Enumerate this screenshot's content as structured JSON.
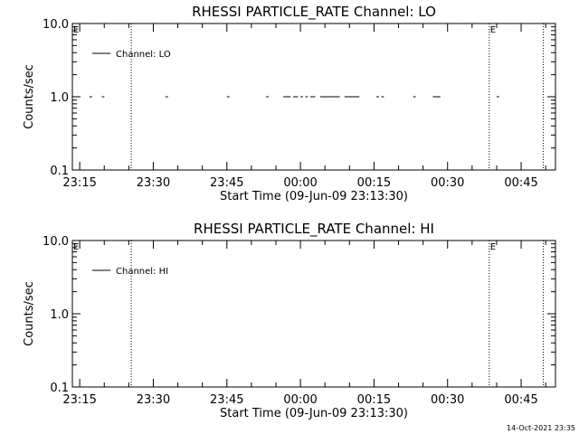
{
  "chart_data": [
    {
      "type": "line",
      "title": "RHESSI PARTICLE_RATE Channel: LO",
      "xlabel": "Start Time (09-Jun-09 23:13:30)",
      "ylabel": "Counts/sec",
      "yscale": "log",
      "ylim": [
        0.1,
        10.0
      ],
      "xlim": [
        "23:13:30",
        "00:52:00"
      ],
      "xtick_labels": [
        "23:15",
        "23:30",
        "23:45",
        "00:00",
        "00:15",
        "00:30",
        "00:45"
      ],
      "ytick_labels": [
        "0.1",
        "1.0",
        "10.0"
      ],
      "legend": {
        "position": "top-left",
        "entries": [
          "Channel: LO"
        ]
      },
      "flag_labels": [
        {
          "text": "E",
          "x": "23:13:30"
        },
        {
          "text": "E",
          "x": "00:38:30"
        }
      ],
      "vlines_dotted": [
        "23:25:30",
        "00:38:30",
        "00:49:30"
      ],
      "series": [
        {
          "name": "Channel: LO",
          "value": 1.0,
          "segments": [
            [
              "23:17:00",
              "23:17:30"
            ],
            [
              "23:19:30",
              "23:20:00"
            ],
            [
              "23:32:30",
              "23:33:00"
            ],
            [
              "23:45:00",
              "23:45:30"
            ],
            [
              "23:53:00",
              "23:53:30"
            ],
            [
              "23:56:30",
              "23:58:00"
            ],
            [
              "23:58:30",
              "23:59:30"
            ],
            [
              "00:00:00",
              "00:00:30"
            ],
            [
              "00:01:00",
              "00:01:30"
            ],
            [
              "00:02:00",
              "00:03:00"
            ],
            [
              "00:04:00",
              "00:08:00"
            ],
            [
              "00:09:00",
              "00:12:00"
            ],
            [
              "00:15:30",
              "00:16:00"
            ],
            [
              "00:16:30",
              "00:17:00"
            ],
            [
              "00:23:00",
              "00:23:30"
            ],
            [
              "00:27:00",
              "00:28:30"
            ],
            [
              "00:40:00",
              "00:40:30"
            ]
          ]
        }
      ]
    },
    {
      "type": "line",
      "title": "RHESSI PARTICLE_RATE Channel: HI",
      "xlabel": "Start Time (09-Jun-09 23:13:30)",
      "ylabel": "Counts/sec",
      "yscale": "log",
      "ylim": [
        0.1,
        10.0
      ],
      "xlim": [
        "23:13:30",
        "00:52:00"
      ],
      "xtick_labels": [
        "23:15",
        "23:30",
        "23:45",
        "00:00",
        "00:15",
        "00:30",
        "00:45"
      ],
      "ytick_labels": [
        "0.1",
        "1.0",
        "10.0"
      ],
      "legend": {
        "position": "top-left",
        "entries": [
          "Channel: HI"
        ]
      },
      "flag_labels": [
        {
          "text": "E",
          "x": "23:13:30"
        },
        {
          "text": "E",
          "x": "00:38:30"
        }
      ],
      "vlines_dotted": [
        "23:25:30",
        "00:38:30",
        "00:49:30"
      ],
      "series": [
        {
          "name": "Channel: HI",
          "value": 1.0,
          "segments": []
        }
      ]
    }
  ],
  "footer": {
    "timestamp": "14-Oct-2021 23:35"
  }
}
